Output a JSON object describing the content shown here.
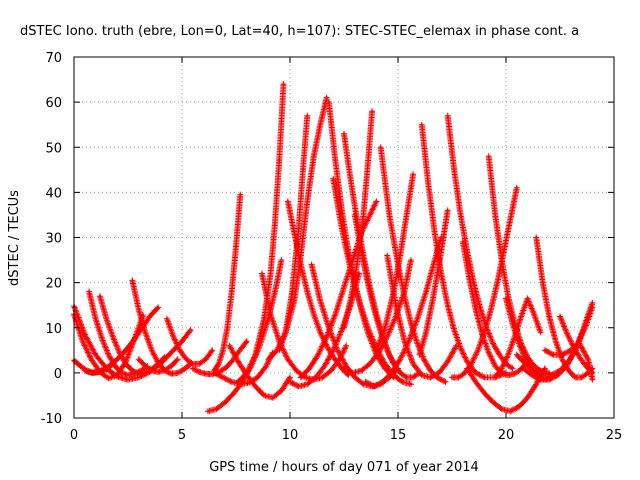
{
  "chart_data": {
    "type": "scatter",
    "title": "dSTEC Iono. truth (ebre, Lon=0, Lat=40, h=107): STEC-STEC_elemax in phase cont. a",
    "xlabel": "GPS time / hours of day 071 of year 2014",
    "ylabel": "dSTEC  / TECUs",
    "xlim": [
      0,
      25
    ],
    "ylim": [
      -10,
      70
    ],
    "xticks": [
      0,
      5,
      10,
      15,
      20,
      25
    ],
    "yticks": [
      -10,
      0,
      10,
      20,
      30,
      40,
      50,
      60,
      70
    ],
    "grid": true,
    "legend": "none",
    "marker": "+",
    "color": "#ff0000",
    "series": [
      {
        "x": [
          0.0,
          0.5,
          1.0,
          1.5,
          2.0,
          2.5,
          3.0,
          3.5,
          4.0,
          4.5,
          5.0,
          5.4
        ],
        "values": [
          14.8,
          8.5,
          4.0,
          1.0,
          -0.8,
          -1.5,
          -1.0,
          0.2,
          2.0,
          4.5,
          7.0,
          9.5
        ]
      },
      {
        "x": [
          0.0,
          0.4,
          0.8,
          1.2,
          1.6,
          2.0,
          2.4,
          2.8,
          3.2
        ],
        "values": [
          13.0,
          7.0,
          3.0,
          0.2,
          -1.2,
          -0.5,
          2.5,
          7.5,
          12.8
        ]
      },
      {
        "x": [
          0.0,
          0.3,
          0.6,
          0.9,
          1.2,
          1.5,
          1.8
        ],
        "values": [
          2.8,
          1.5,
          0.5,
          0.0,
          0.2,
          0.8,
          2.0
        ]
      },
      {
        "x": [
          0.5,
          0.8,
          1.1,
          1.4,
          1.7,
          2.0,
          2.3,
          2.6,
          2.9,
          3.2,
          3.5,
          3.9
        ],
        "values": [
          0.5,
          0.0,
          0.2,
          0.8,
          1.8,
          3.0,
          4.5,
          6.2,
          8.2,
          10.2,
          12.5,
          14.5
        ]
      },
      {
        "x": [
          0.7,
          1.0,
          1.3,
          1.6,
          1.9,
          2.2,
          2.5,
          2.8,
          3.1,
          3.4
        ],
        "values": [
          18.0,
          12.0,
          7.5,
          4.0,
          1.5,
          0.0,
          -0.5,
          -0.2,
          0.5,
          1.5
        ]
      },
      {
        "x": [
          1.2,
          1.5,
          1.8,
          2.1,
          2.4,
          2.7,
          3.0,
          3.3,
          3.6,
          3.9,
          4.2
        ],
        "values": [
          17.0,
          12.0,
          8.0,
          4.5,
          2.0,
          0.5,
          -0.2,
          0.0,
          0.8,
          2.0,
          3.5
        ]
      },
      {
        "x": [
          2.7,
          3.0,
          3.3,
          3.6,
          3.9,
          4.2,
          4.5,
          4.8,
          5.1,
          5.4
        ],
        "values": [
          20.5,
          14.0,
          9.0,
          5.0,
          2.2,
          0.5,
          -0.2,
          0.0,
          0.8,
          2.0
        ]
      },
      {
        "x": [
          3.0,
          3.3,
          3.6,
          3.9,
          4.2,
          4.5,
          4.8
        ],
        "values": [
          3.0,
          1.5,
          0.5,
          0.2,
          0.6,
          1.5,
          3.0
        ]
      },
      {
        "x": [
          4.3,
          4.6,
          4.9,
          5.2,
          5.5,
          5.8,
          6.1,
          6.4
        ],
        "values": [
          12.0,
          8.0,
          5.0,
          3.0,
          2.0,
          2.0,
          3.0,
          5.0
        ]
      },
      {
        "x": [
          5.5,
          5.8,
          6.1,
          6.4,
          6.7,
          7.0,
          7.3,
          7.6,
          8.0
        ],
        "values": [
          1.0,
          0.2,
          -0.2,
          -0.3,
          0.2,
          1.0,
          2.5,
          4.5,
          7.0
        ]
      },
      {
        "x": [
          6.2,
          6.6,
          7.0,
          7.4,
          7.8,
          8.2,
          8.6,
          9.0,
          9.4,
          9.6
        ],
        "values": [
          -8.5,
          -8.0,
          -6.5,
          -4.5,
          -2.0,
          1.5,
          6.0,
          12.0,
          20.0,
          25.0
        ]
      },
      {
        "x": [
          6.5,
          6.7,
          6.9,
          7.1,
          7.3,
          7.5,
          7.7
        ],
        "values": [
          0.5,
          2.0,
          5.0,
          10.0,
          18.0,
          28.0,
          39.5
        ]
      },
      {
        "x": [
          6.5,
          6.9,
          7.3,
          7.7,
          8.1,
          8.5,
          8.9,
          9.2
        ],
        "values": [
          0.0,
          -1.0,
          -2.0,
          -2.5,
          -2.2,
          -1.0,
          1.5,
          4.5
        ]
      },
      {
        "x": [
          7.2,
          7.6,
          8.0,
          8.4,
          8.8,
          9.2,
          9.6,
          10.0
        ],
        "values": [
          6.0,
          2.5,
          -0.5,
          -3.0,
          -5.0,
          -5.5,
          -4.0,
          -1.0
        ]
      },
      {
        "x": [
          7.6,
          8.0,
          8.4,
          8.8,
          9.1,
          9.3,
          9.5,
          9.7
        ],
        "values": [
          -2.0,
          0.0,
          4.0,
          12.0,
          22.0,
          33.0,
          47.0,
          64.0
        ]
      },
      {
        "x": [
          8.7,
          9.1,
          9.5,
          9.9,
          10.3,
          10.7,
          11.1,
          11.5,
          11.9,
          12.3,
          12.6
        ],
        "values": [
          22.0,
          13.0,
          7.0,
          3.0,
          0.5,
          -1.0,
          -1.5,
          -1.0,
          0.5,
          3.0,
          6.0
        ]
      },
      {
        "x": [
          9.0,
          9.4,
          9.8,
          10.2,
          10.5,
          10.8,
          11.1,
          11.4,
          11.7
        ],
        "values": [
          3.0,
          5.0,
          9.0,
          16.0,
          26.0,
          38.0,
          48.0,
          55.0,
          61.0
        ]
      },
      {
        "x": [
          9.5,
          9.8,
          10.1,
          10.4,
          10.6,
          10.8
        ],
        "values": [
          5.0,
          9.0,
          18.0,
          32.0,
          45.0,
          57.0
        ]
      },
      {
        "x": [
          9.9,
          10.2,
          10.5,
          10.8,
          11.1,
          11.4,
          11.7,
          12.0,
          12.4,
          12.7
        ],
        "values": [
          38.0,
          31.0,
          24.0,
          18.0,
          13.0,
          9.0,
          6.0,
          3.5,
          1.0,
          -0.5
        ]
      },
      {
        "x": [
          10.0,
          10.4,
          10.8,
          11.2,
          11.6,
          12.0,
          12.4,
          12.8,
          13.2
        ],
        "values": [
          -2.0,
          -3.0,
          -2.5,
          -1.0,
          1.5,
          5.0,
          9.5,
          15.0,
          22.0
        ]
      },
      {
        "x": [
          10.5,
          10.9,
          11.3,
          11.7,
          12.1,
          12.5,
          12.9,
          13.3,
          13.7,
          14.0
        ],
        "values": [
          -1.0,
          1.0,
          4.0,
          8.0,
          13.0,
          19.0,
          25.0,
          31.0,
          35.0,
          38.0
        ]
      },
      {
        "x": [
          11.0,
          11.4,
          11.8,
          12.2,
          12.6,
          13.0,
          13.4,
          13.8,
          14.2,
          14.6,
          15.0
        ],
        "values": [
          24.0,
          16.0,
          10.0,
          5.0,
          1.5,
          -1.0,
          -2.5,
          -3.0,
          -2.5,
          -1.0,
          1.0
        ]
      },
      {
        "x": [
          11.8,
          12.1,
          12.4,
          12.7,
          13.0,
          13.3,
          13.6,
          14.0,
          14.4,
          14.8
        ],
        "values": [
          60.0,
          47.0,
          36.0,
          27.0,
          20.0,
          14.0,
          9.0,
          4.0,
          1.0,
          -1.0
        ]
      },
      {
        "x": [
          12.0,
          12.4,
          12.8,
          13.2,
          13.6,
          14.0,
          14.4,
          14.8,
          15.2,
          15.6
        ],
        "values": [
          43.0,
          32.0,
          23.0,
          16.0,
          10.0,
          5.5,
          2.0,
          -0.5,
          -2.0,
          -2.5
        ]
      },
      {
        "x": [
          12.5,
          12.8,
          13.1,
          13.4,
          13.7,
          14.0,
          14.3,
          14.6,
          15.0
        ],
        "values": [
          53.0,
          43.0,
          34.0,
          26.0,
          19.0,
          13.0,
          8.0,
          4.0,
          0.5
        ]
      },
      {
        "x": [
          12.5,
          12.9,
          13.3,
          13.7,
          14.1,
          14.5,
          14.9,
          15.3,
          15.6
        ],
        "values": [
          1.0,
          0.0,
          0.5,
          2.0,
          4.5,
          8.0,
          12.5,
          18.0,
          25.0
        ]
      },
      {
        "x": [
          13.0,
          13.3,
          13.6,
          13.9,
          14.2,
          14.5,
          14.8,
          15.1,
          15.4,
          15.7,
          16.0
        ],
        "values": [
          35.0,
          27.0,
          20.0,
          14.0,
          9.0,
          5.0,
          2.0,
          0.0,
          -1.0,
          -1.0,
          0.0
        ]
      },
      {
        "x": [
          12.5,
          12.8,
          13.1,
          13.4,
          13.6,
          13.8
        ],
        "values": [
          10.0,
          16.0,
          24.0,
          35.0,
          46.0,
          58.0
        ]
      },
      {
        "x": [
          13.5,
          13.9,
          14.3,
          14.7,
          15.1,
          15.5,
          15.9,
          16.3,
          16.7,
          17.0
        ],
        "values": [
          -2.0,
          -3.0,
          -2.0,
          0.0,
          3.0,
          7.0,
          12.0,
          18.0,
          25.0,
          30.0
        ]
      },
      {
        "x": [
          14.2,
          14.6,
          15.0,
          15.3,
          15.6,
          15.9,
          16.2,
          16.5,
          16.8,
          17.2
        ],
        "values": [
          50.0,
          35.0,
          24.0,
          17.0,
          11.0,
          6.5,
          3.0,
          0.5,
          -1.0,
          -2.0
        ]
      },
      {
        "x": [
          14.0,
          14.4,
          14.8,
          15.1,
          15.4,
          15.7
        ],
        "values": [
          5.0,
          10.0,
          18.0,
          26.0,
          35.0,
          44.0
        ]
      },
      {
        "x": [
          14.5,
          14.9,
          15.3,
          15.7,
          16.1,
          16.5,
          16.9,
          17.3,
          17.7
        ],
        "values": [
          26.0,
          15.0,
          7.0,
          2.0,
          -0.5,
          -1.0,
          0.0,
          2.5,
          6.0
        ]
      },
      {
        "x": [
          16.1,
          16.4,
          16.7,
          17.0,
          17.3,
          17.6,
          17.9,
          18.2,
          18.6,
          19.0,
          19.5,
          20.0
        ],
        "values": [
          55.0,
          42.0,
          31.0,
          22.0,
          15.0,
          9.5,
          5.5,
          2.5,
          0.0,
          -1.0,
          -1.0,
          0.0
        ]
      },
      {
        "x": [
          16.0,
          16.3,
          16.6,
          16.9,
          17.1,
          17.3
        ],
        "values": [
          4.0,
          9.0,
          16.0,
          24.0,
          30.0,
          36.0
        ]
      },
      {
        "x": [
          17.3,
          17.6,
          17.9,
          18.2,
          18.5,
          18.8,
          19.1,
          19.4,
          19.7,
          20.0,
          20.3
        ],
        "values": [
          57.0,
          45.0,
          35.0,
          27.0,
          20.0,
          14.5,
          10.0,
          6.5,
          4.0,
          2.0,
          1.0
        ]
      },
      {
        "x": [
          17.5,
          17.8,
          18.1,
          18.4,
          18.7,
          19.0,
          19.3,
          19.6,
          19.9,
          20.2,
          20.5
        ],
        "values": [
          -1.0,
          -1.0,
          0.0,
          2.0,
          5.0,
          9.0,
          14.0,
          20.0,
          27.0,
          34.0,
          41.0
        ]
      },
      {
        "x": [
          18.0,
          18.3,
          18.6,
          18.9,
          19.2,
          19.5,
          19.8,
          20.1,
          20.4,
          20.7,
          21.0
        ],
        "values": [
          29.0,
          21.0,
          14.0,
          8.5,
          4.5,
          1.5,
          0.0,
          -0.5,
          -0.2,
          0.8,
          2.5
        ]
      },
      {
        "x": [
          18.2,
          18.6,
          19.0,
          19.4,
          19.8,
          20.2,
          20.6,
          21.0,
          21.4,
          21.8
        ],
        "values": [
          1.0,
          -2.0,
          -4.5,
          -6.5,
          -8.0,
          -8.5,
          -7.5,
          -5.5,
          -2.5,
          1.0
        ]
      },
      {
        "x": [
          19.2,
          19.5,
          19.8,
          20.1,
          20.4,
          20.7,
          21.0,
          21.3,
          21.6,
          22.0
        ],
        "values": [
          48.0,
          35.0,
          25.0,
          17.0,
          11.0,
          6.5,
          3.5,
          1.5,
          0.5,
          0.0
        ]
      },
      {
        "x": [
          19.5,
          19.8,
          20.1,
          20.4,
          20.7,
          21.0,
          21.3,
          21.6
        ],
        "values": [
          -1.0,
          1.0,
          4.0,
          8.0,
          12.5,
          16.5,
          13.0,
          9.0
        ]
      },
      {
        "x": [
          20.0,
          20.3,
          20.6,
          20.9,
          21.2,
          21.5,
          21.8,
          22.1
        ],
        "values": [
          16.5,
          11.0,
          6.5,
          3.0,
          0.5,
          -1.0,
          -1.5,
          -1.0
        ]
      },
      {
        "x": [
          21.4,
          21.7,
          22.0,
          22.3,
          22.6,
          22.9,
          23.2,
          23.5,
          23.8,
          24.0
        ],
        "values": [
          30.0,
          20.0,
          12.5,
          7.0,
          3.0,
          0.5,
          -1.0,
          -1.0,
          0.0,
          1.0
        ]
      },
      {
        "x": [
          20.8,
          21.2,
          21.6,
          22.0,
          22.4,
          22.8,
          23.2,
          23.6,
          24.0
        ],
        "values": [
          1.0,
          -0.5,
          -1.5,
          -1.5,
          -0.5,
          1.5,
          5.0,
          10.0,
          15.5
        ]
      },
      {
        "x": [
          20.5,
          20.9,
          21.3,
          21.7,
          22.1,
          22.5,
          22.9,
          23.3,
          23.7,
          24.0
        ],
        "values": [
          4.0,
          2.0,
          0.5,
          -0.5,
          -0.5,
          0.5,
          2.5,
          6.0,
          10.5,
          14.5
        ]
      },
      {
        "x": [
          21.8,
          22.2,
          22.6,
          23.0,
          23.4,
          23.8,
          24.0
        ],
        "values": [
          5.0,
          4.0,
          4.0,
          5.0,
          6.5,
          3.0,
          -1.5
        ]
      },
      {
        "x": [
          22.5,
          22.8,
          23.1,
          23.4,
          23.7,
          24.0
        ],
        "values": [
          12.5,
          9.0,
          6.0,
          3.5,
          1.5,
          0.0
        ]
      }
    ]
  }
}
